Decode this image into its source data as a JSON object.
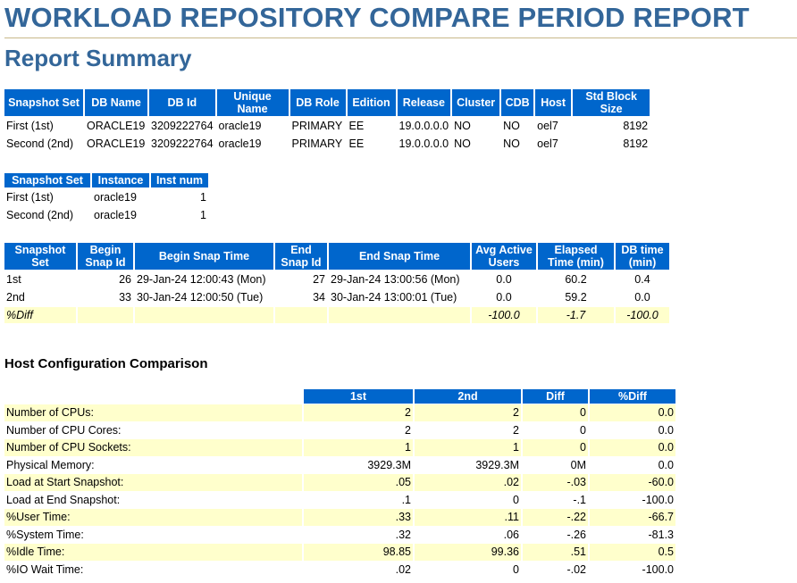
{
  "report": {
    "title": "WORKLOAD REPOSITORY COMPARE PERIOD REPORT",
    "subtitle": "Report Summary"
  },
  "snapshot_table": {
    "headers": [
      "Snapshot Set",
      "DB Name",
      "DB Id",
      "Unique Name",
      "DB Role",
      "Edition",
      "Release",
      "Cluster",
      "CDB",
      "Host",
      "Std Block Size"
    ],
    "rows": [
      [
        "First (1st)",
        "ORACLE19",
        "3209222764",
        "oracle19",
        "PRIMARY",
        "EE",
        "19.0.0.0.0",
        "NO",
        "NO",
        "oel7",
        "8192"
      ],
      [
        "Second (2nd)",
        "ORACLE19",
        "3209222764",
        "oracle19",
        "PRIMARY",
        "EE",
        "19.0.0.0.0",
        "NO",
        "NO",
        "oel7",
        "8192"
      ]
    ]
  },
  "instance_table": {
    "headers": [
      "Snapshot Set",
      "Instance",
      "Inst num"
    ],
    "rows": [
      [
        "First (1st)",
        "oracle19",
        "1"
      ],
      [
        "Second (2nd)",
        "oracle19",
        "1"
      ]
    ]
  },
  "snap_time_table": {
    "headers": [
      "Snapshot Set",
      "Begin Snap Id",
      "Begin Snap Time",
      "End Snap Id",
      "End Snap Time",
      "Avg Active Users",
      "Elapsed Time (min)",
      "DB time (min)"
    ],
    "rows": [
      [
        "1st",
        "26",
        "29-Jan-24 12:00:43 (Mon)",
        "27",
        "29-Jan-24 13:00:56 (Mon)",
        "0.0",
        "60.2",
        "0.4"
      ],
      [
        "2nd",
        "33",
        "30-Jan-24 12:00:50 (Tue)",
        "34",
        "30-Jan-24 13:00:01 (Tue)",
        "0.0",
        "59.2",
        "0.0"
      ],
      [
        "%Diff",
        "",
        "",
        "",
        "",
        "-100.0",
        "-1.7",
        "-100.0"
      ]
    ]
  },
  "host_config": {
    "section_title": "Host Configuration Comparison",
    "headers": [
      "",
      "1st",
      "2nd",
      "Diff",
      "%Diff"
    ],
    "rows": [
      [
        "Number of CPUs:",
        "2",
        "2",
        "0",
        "0.0"
      ],
      [
        "Number of CPU Cores:",
        "2",
        "2",
        "0",
        "0.0"
      ],
      [
        "Number of CPU Sockets:",
        "1",
        "1",
        "0",
        "0.0"
      ],
      [
        "Physical Memory:",
        "3929.3M",
        "3929.3M",
        "0M",
        "0.0"
      ],
      [
        "Load at Start Snapshot:",
        ".05",
        ".02",
        "-.03",
        "-60.0"
      ],
      [
        "Load at End Snapshot:",
        ".1",
        "0",
        "-.1",
        "-100.0"
      ],
      [
        "%User Time:",
        ".33",
        ".11",
        "-.22",
        "-66.7"
      ],
      [
        "%System Time:",
        ".32",
        ".06",
        "-.26",
        "-81.3"
      ],
      [
        "%Idle Time:",
        "98.85",
        "99.36",
        ".51",
        "0.5"
      ],
      [
        "%IO Wait Time:",
        ".02",
        "0",
        "-.02",
        "-100.0"
      ]
    ]
  }
}
